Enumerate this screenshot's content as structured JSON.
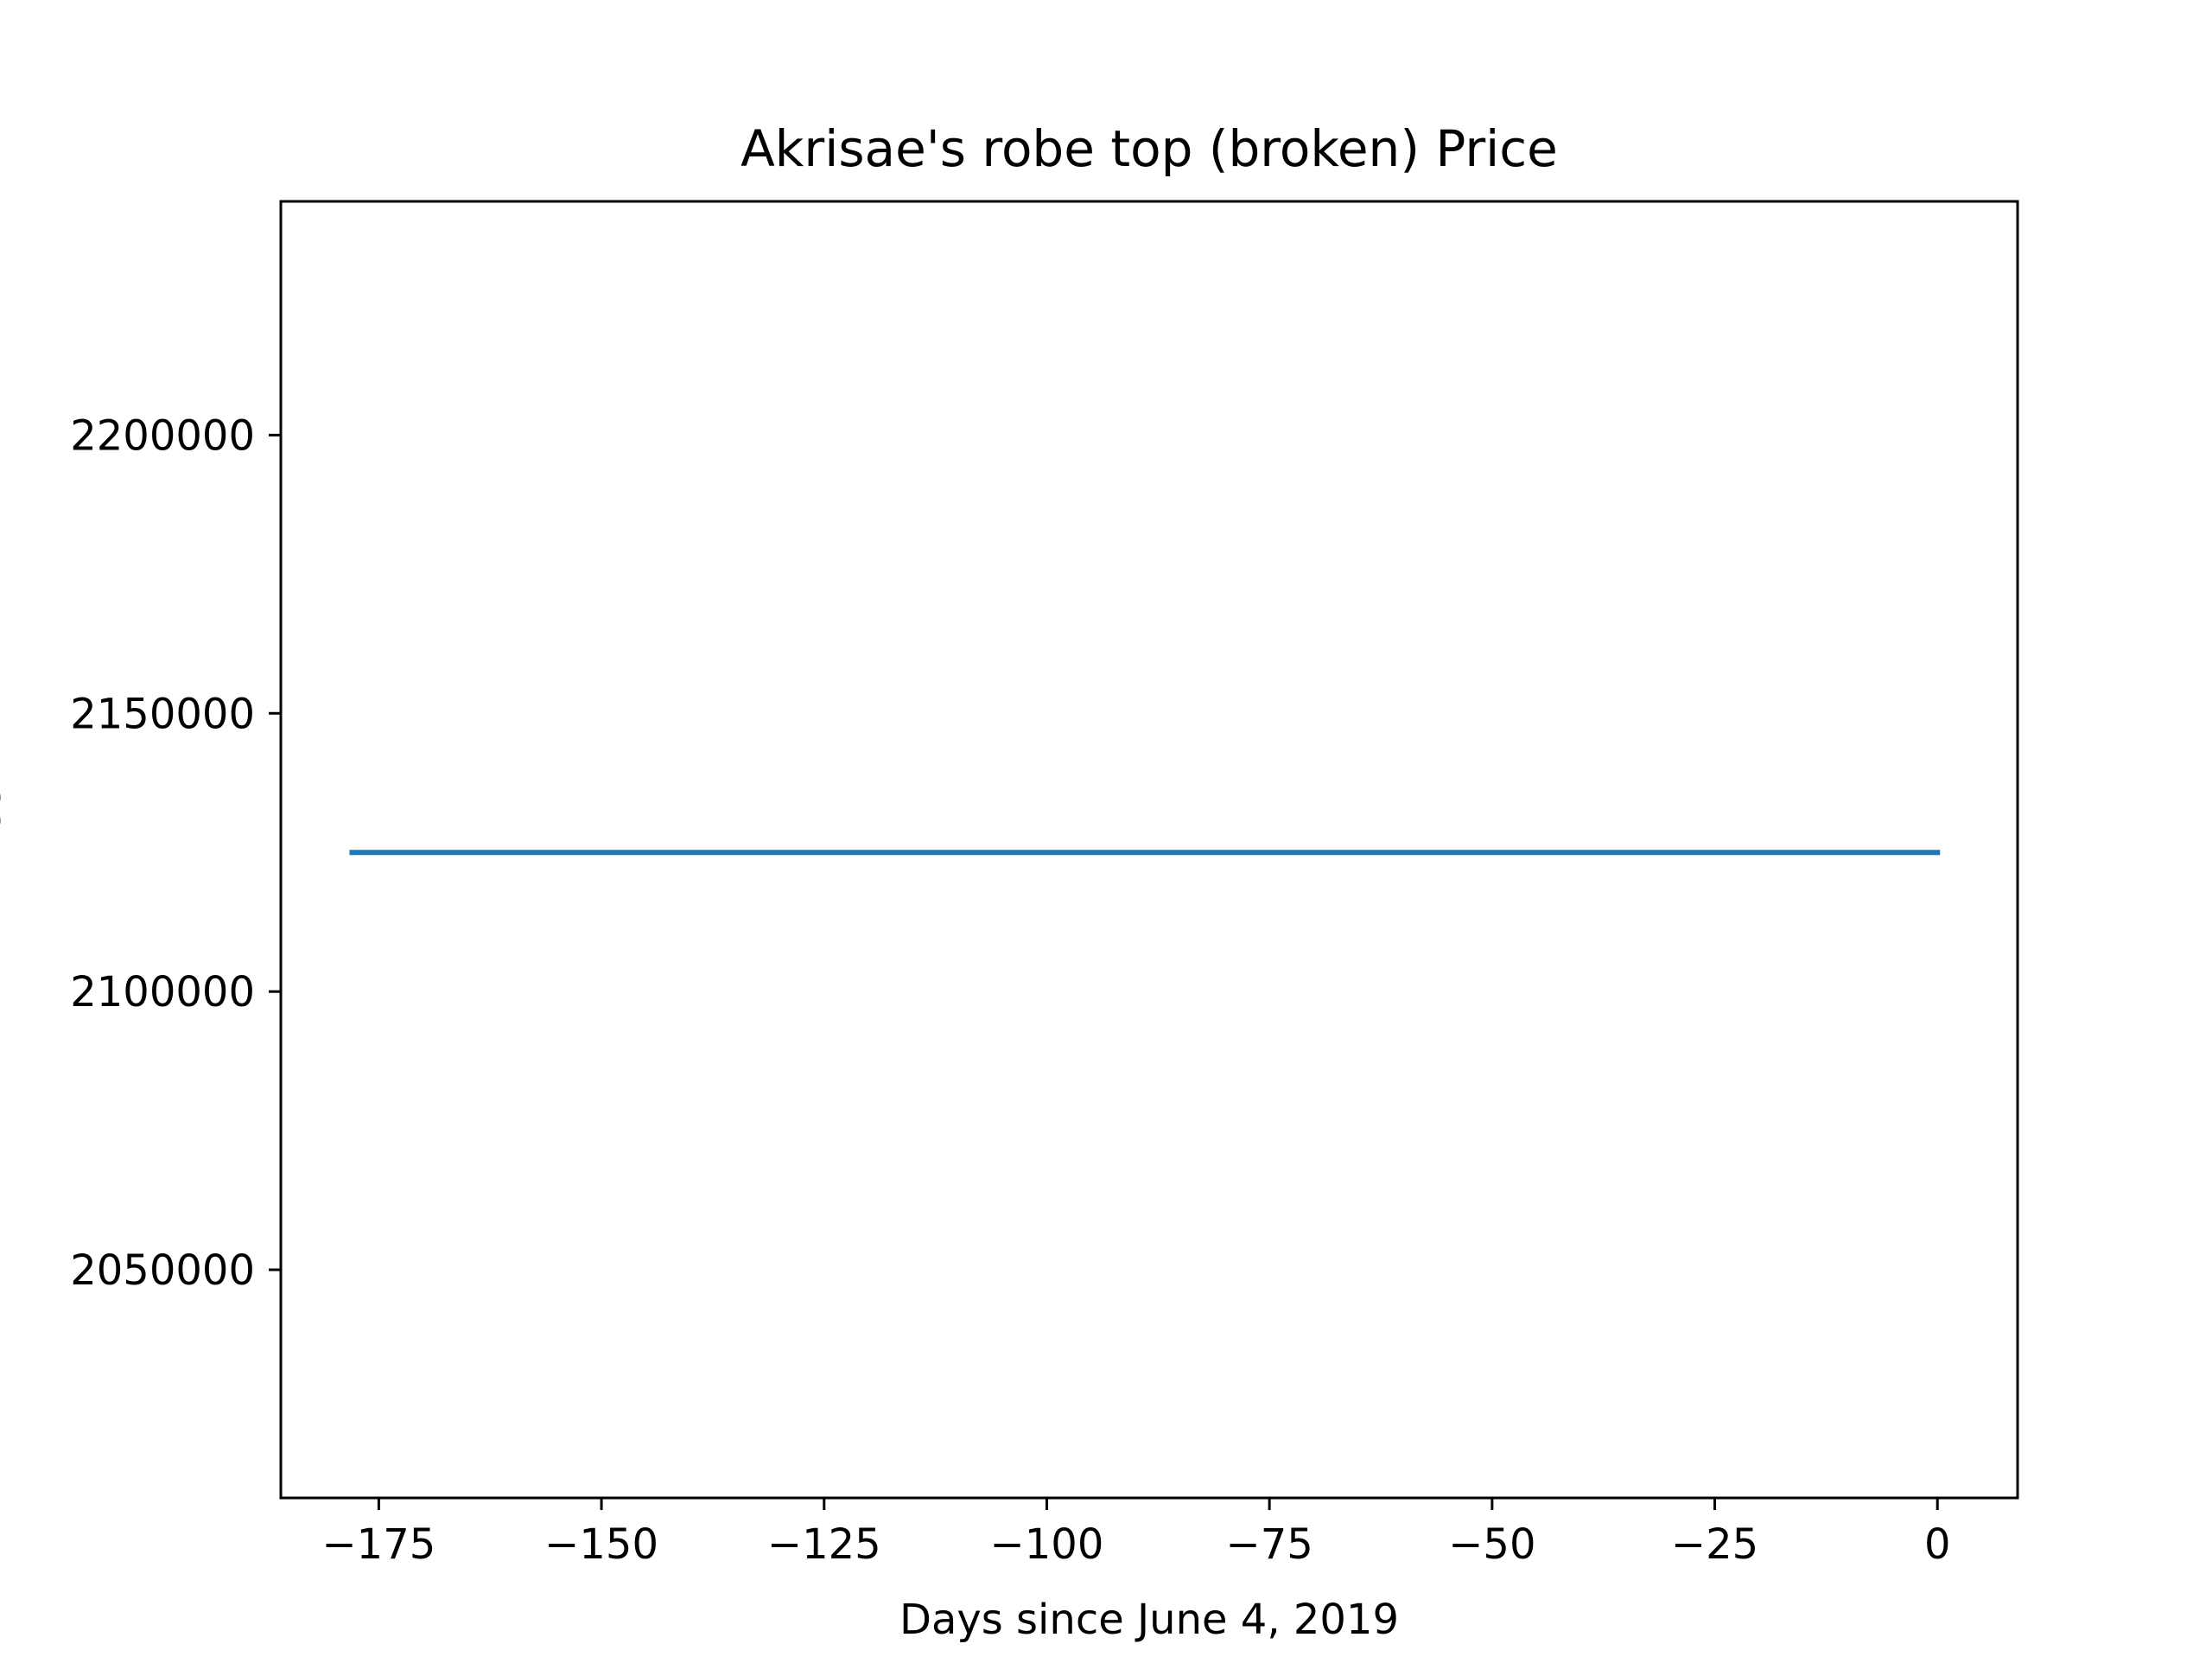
{
  "chart_data": {
    "type": "line",
    "title": "Akrisae's robe top (broken) Price",
    "xlabel": "Days since June 4, 2019",
    "ylabel": "Price",
    "xlim": [
      -186,
      9
    ],
    "ylim": [
      2009000,
      2242000
    ],
    "x_ticks": [
      -175,
      -150,
      -125,
      -100,
      -75,
      -50,
      -25,
      0
    ],
    "x_tick_labels": [
      "−175",
      "−150",
      "−125",
      "−100",
      "−75",
      "−50",
      "−25",
      "0"
    ],
    "y_ticks": [
      2050000,
      2100000,
      2150000,
      2200000
    ],
    "y_tick_labels": [
      "2050000",
      "2100000",
      "2150000",
      "2200000"
    ],
    "grid": false,
    "legend": "none",
    "series": [
      {
        "color": "#1f77b4",
        "x": [
          -178,
          0
        ],
        "y": [
          2125000,
          2125000
        ]
      }
    ]
  }
}
